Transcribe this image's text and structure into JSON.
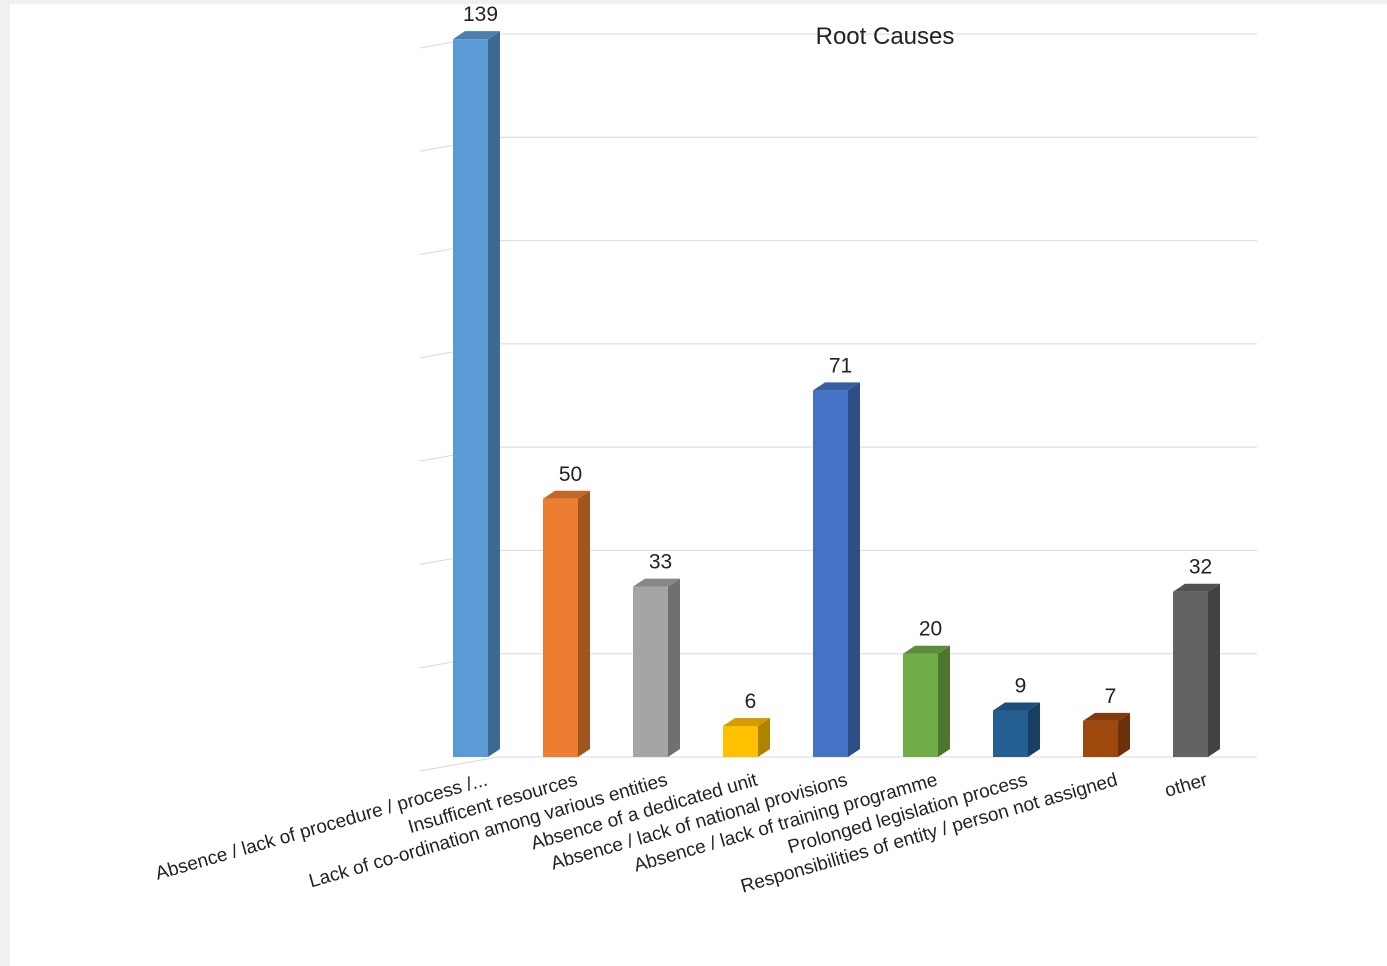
{
  "chart_data": {
    "type": "bar",
    "title": "Root Causes",
    "categories": [
      "Absence / lack of procedure / process /...",
      "Insufficent resources",
      "Lack of co-ordination among various entities",
      "Absence of a dedicated unit",
      "Absence / lack of national provisions",
      "Absence / lack of training programme",
      "Prolonged legislation process",
      "Responsibilities of entity  / person not assigned",
      "other"
    ],
    "values": [
      139,
      50,
      33,
      6,
      71,
      20,
      9,
      7,
      32
    ],
    "colors": [
      "#5b9bd5",
      "#ed7d31",
      "#a5a5a5",
      "#ffc000",
      "#4472c4",
      "#70ad47",
      "#255e91",
      "#9e480e",
      "#636363"
    ],
    "xlabel": "",
    "ylabel": "",
    "ylim": [
      0,
      140
    ],
    "grid": true,
    "legend": "none"
  }
}
